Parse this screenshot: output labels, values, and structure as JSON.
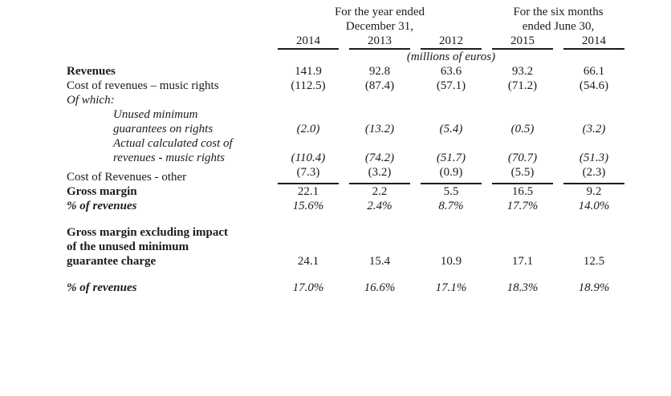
{
  "document": {
    "background": "#ffffff",
    "text_color": "#1b1b1b"
  },
  "table": {
    "group_headers": [
      {
        "label": "For the year ended\nDecember 31,",
        "span": 3
      },
      {
        "label": "For the six months\nended June 30,",
        "span": 2
      }
    ],
    "column_headers": [
      "2014",
      "2013",
      "2012",
      "2015",
      "2014"
    ],
    "units_note": "(millions of euros)",
    "rows": [
      {
        "label": "Revenues",
        "values": [
          "141.9",
          "92.8",
          "63.6",
          "93.2",
          "66.1"
        ]
      },
      {
        "label": "Cost of revenues – music rights",
        "values": [
          "(112.5)",
          "(87.4)",
          "(57.1)",
          "(71.2)",
          "(54.6)"
        ]
      },
      {
        "label": "Of which:",
        "values": [
          "",
          "",
          "",
          "",
          ""
        ]
      },
      {
        "label": "Unused minimum\nguarantees on rights",
        "values": [
          "(2.0)",
          "(13.2)",
          "(5.4)",
          "(0.5)",
          "(3.2)"
        ]
      },
      {
        "label": "Actual calculated cost of\nrevenues - music rights",
        "values": [
          "(110.4)",
          "(74.2)",
          "(51.7)",
          "(70.7)",
          "(51.3)"
        ]
      },
      {
        "label": "Cost of Revenues - other",
        "values": [
          "(7.3)",
          "(3.2)",
          "(0.9)",
          "(5.5)",
          "(2.3)"
        ]
      },
      {
        "label": "Gross margin",
        "values": [
          "22.1",
          "2.2",
          "5.5",
          "16.5",
          "9.2"
        ]
      },
      {
        "label": "% of revenues",
        "values": [
          "15.6%",
          "2.4%",
          "8.7%",
          "17.7%",
          "14.0%"
        ]
      },
      {
        "label": "Gross margin excluding impact\nof the unused minimum\nguarantee charge",
        "values": [
          "24.1",
          "15.4",
          "10.9",
          "17.1",
          "12.5"
        ]
      },
      {
        "label": "% of revenues",
        "values": [
          "17.0%",
          "16.6%",
          "17.1%",
          "18.3%",
          "18.9%"
        ]
      }
    ]
  }
}
